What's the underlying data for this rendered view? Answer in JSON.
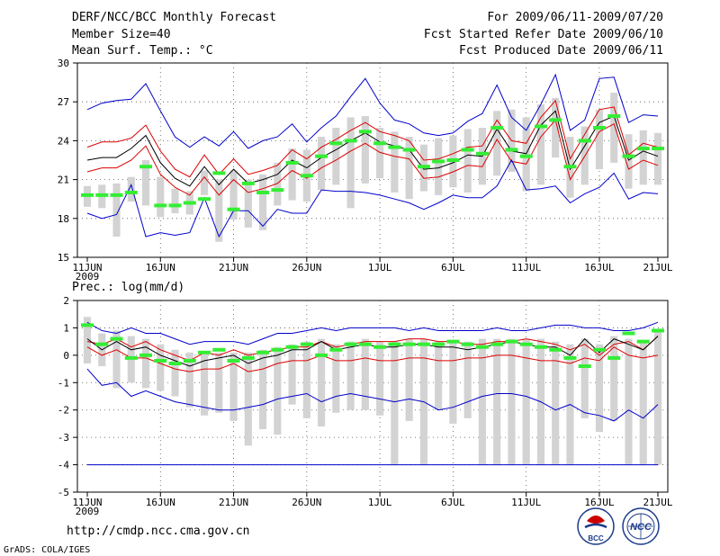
{
  "header": {
    "title": "DERF/NCC/BCC Monthly Forecast",
    "member_size": "Member Size=40",
    "variable": "Mean Surf. Temp.: °C",
    "period": "For 2009/06/11-2009/07/20",
    "started": "Fcst Started Refer Date 2009/06/10",
    "produced": "Fcst Produced Date 2009/06/11"
  },
  "footer": {
    "url": "http://cmdp.ncc.cma.gov.cn",
    "grads": "GrADS: COLA/IGES",
    "logo1_text": "BCC",
    "logo2_text": "NCC"
  },
  "colors": {
    "max": "#0000cc",
    "spread": "#dd0000",
    "mean": "#000000",
    "box": "#d3d3d3",
    "median": "#33ee33",
    "grid": "#555555"
  },
  "chart_data": [
    {
      "type": "line",
      "title": "Mean Surf. Temp.: °C",
      "x_tick_labels": [
        "11JUN",
        "16JUN",
        "21JUN",
        "26JUN",
        "1JUL",
        "6JUL",
        "11JUL",
        "16JUL",
        "21JUL"
      ],
      "x_year_label": "2009",
      "y_tick_labels": [
        "15",
        "18",
        "21",
        "24",
        "27",
        "30"
      ],
      "ylim": [
        15,
        30
      ],
      "days": 40,
      "series": [
        {
          "name": "max",
          "values": [
            26.4,
            26.9,
            27.1,
            27.2,
            28.4,
            26.3,
            24.3,
            23.5,
            24.3,
            23.6,
            24.7,
            23.4,
            24.0,
            24.3,
            25.3,
            23.9,
            25.0,
            25.9,
            27.4,
            28.8,
            26.9,
            25.6,
            25.3,
            24.6,
            24.4,
            24.6,
            25.5,
            26.1,
            28.3,
            25.8,
            24.8,
            26.8,
            29.1,
            24.8,
            25.6,
            28.8,
            28.9,
            25.4,
            26.0,
            25.9
          ]
        },
        {
          "name": "upper",
          "values": [
            23.5,
            23.9,
            23.9,
            24.2,
            25.2,
            23.2,
            21.8,
            21.2,
            22.9,
            21.4,
            22.6,
            21.4,
            21.7,
            22.1,
            23.3,
            22.6,
            23.5,
            24.1,
            24.8,
            25.4,
            24.7,
            24.4,
            24.0,
            22.5,
            22.6,
            23.0,
            23.5,
            23.6,
            25.6,
            24.0,
            23.8,
            25.8,
            27.1,
            22.6,
            24.5,
            26.4,
            26.6,
            22.9,
            23.8,
            23.5
          ]
        },
        {
          "name": "mean",
          "values": [
            22.5,
            22.7,
            22.7,
            23.4,
            24.4,
            22.3,
            21.1,
            20.5,
            22.0,
            20.6,
            21.8,
            20.7,
            21.0,
            21.4,
            22.5,
            21.9,
            22.7,
            23.3,
            24.0,
            24.6,
            23.9,
            23.6,
            23.3,
            21.8,
            21.9,
            22.3,
            22.9,
            22.8,
            24.9,
            23.2,
            23.0,
            25.2,
            26.3,
            21.8,
            23.6,
            25.4,
            25.9,
            22.5,
            23.2,
            22.8
          ]
        },
        {
          "name": "lower",
          "values": [
            21.6,
            21.9,
            21.9,
            22.5,
            23.6,
            21.4,
            20.4,
            19.8,
            21.2,
            19.8,
            21.0,
            20.0,
            20.3,
            20.7,
            21.7,
            21.1,
            21.9,
            22.5,
            23.2,
            23.8,
            23.1,
            22.8,
            22.6,
            21.1,
            21.2,
            21.6,
            22.1,
            22.0,
            24.1,
            22.4,
            22.2,
            24.3,
            25.6,
            21.0,
            22.8,
            24.7,
            25.3,
            21.8,
            22.5,
            22.1
          ]
        },
        {
          "name": "min",
          "values": [
            18.4,
            18.0,
            18.3,
            20.6,
            16.6,
            16.9,
            16.7,
            16.9,
            19.6,
            16.6,
            18.6,
            18.6,
            17.4,
            18.7,
            18.4,
            18.4,
            20.2,
            20.1,
            20.1,
            20.0,
            19.8,
            19.5,
            19.2,
            18.7,
            19.2,
            19.8,
            19.6,
            19.6,
            20.5,
            22.5,
            20.2,
            20.3,
            20.5,
            19.2,
            19.9,
            20.4,
            21.5,
            19.5,
            20.0,
            19.9
          ]
        }
      ],
      "box_tops": [
        20.5,
        20.6,
        20.7,
        21.2,
        22.5,
        21.2,
        20.3,
        20.1,
        21.7,
        21.0,
        21.7,
        21.0,
        21.4,
        22.3,
        23.4,
        23.3,
        24.3,
        25.0,
        25.8,
        25.9,
        25.0,
        24.7,
        24.3,
        23.7,
        24.2,
        24.4,
        24.9,
        25.0,
        26.3,
        26.4,
        25.8,
        26.8,
        27.3,
        24.3,
        25.1,
        26.4,
        27.7,
        24.5,
        24.8,
        24.6
      ],
      "box_bottoms": [
        18.9,
        18.8,
        16.6,
        19.3,
        19.0,
        18.1,
        18.4,
        18.3,
        19.8,
        16.2,
        17.9,
        17.3,
        17.1,
        19.0,
        19.4,
        19.3,
        20.2,
        20.6,
        18.8,
        20.7,
        21.1,
        20.0,
        19.5,
        20.1,
        19.8,
        20.4,
        20.0,
        20.6,
        21.3,
        21.6,
        20.1,
        20.6,
        22.7,
        19.6,
        20.6,
        21.8,
        22.3,
        20.3,
        20.6,
        20.6
      ],
      "medians": [
        19.8,
        19.8,
        19.8,
        20.0,
        22.0,
        19.0,
        19.0,
        19.2,
        19.5,
        21.5,
        18.7,
        20.7,
        20.0,
        20.2,
        22.3,
        21.3,
        22.8,
        23.8,
        24.0,
        24.7,
        23.8,
        23.5,
        23.3,
        22.0,
        22.4,
        22.5,
        23.3,
        23.0,
        25.0,
        23.3,
        22.8,
        25.1,
        25.6,
        22.0,
        24.0,
        25.0,
        25.9,
        22.8,
        23.4,
        23.4
      ]
    },
    {
      "type": "line",
      "title": "Prec.: log(mm/d)",
      "x_tick_labels": [
        "11JUN",
        "16JUN",
        "21JUN",
        "26JUN",
        "1JUL",
        "6JUL",
        "11JUL",
        "16JUL",
        "21JUL"
      ],
      "x_year_label": "2009",
      "y_tick_labels": [
        "-5",
        "-4",
        "-3",
        "-2",
        "-1",
        "0",
        "1",
        "2"
      ],
      "ylim": [
        -5,
        2
      ],
      "days": 40,
      "series": [
        {
          "name": "max",
          "values": [
            1.2,
            0.9,
            0.8,
            1.0,
            0.8,
            0.8,
            0.6,
            0.4,
            0.5,
            0.5,
            0.5,
            0.4,
            0.6,
            0.8,
            0.8,
            0.9,
            1.0,
            0.9,
            1.0,
            1.0,
            1.0,
            1.0,
            0.9,
            1.0,
            0.9,
            0.9,
            0.9,
            0.9,
            1.0,
            0.9,
            0.9,
            1.0,
            1.1,
            1.1,
            1.0,
            1.0,
            0.9,
            0.9,
            1.0,
            1.2
          ]
        },
        {
          "name": "upper",
          "values": [
            0.5,
            0.4,
            0.6,
            0.3,
            0.5,
            0.2,
            0.0,
            -0.2,
            0.1,
            0.0,
            0.2,
            0.0,
            0.1,
            0.2,
            0.3,
            0.3,
            0.5,
            0.3,
            0.4,
            0.5,
            0.5,
            0.5,
            0.6,
            0.6,
            0.5,
            0.5,
            0.4,
            0.4,
            0.5,
            0.5,
            0.6,
            0.5,
            0.4,
            0.2,
            0.4,
            0.0,
            0.4,
            0.5,
            0.2,
            0.7
          ]
        },
        {
          "name": "mean",
          "values": [
            0.6,
            0.2,
            0.5,
            0.2,
            0.3,
            0.0,
            -0.2,
            -0.4,
            -0.2,
            -0.1,
            0.0,
            -0.3,
            -0.1,
            0.0,
            0.2,
            0.2,
            0.5,
            0.2,
            0.3,
            0.4,
            0.3,
            0.3,
            0.4,
            0.4,
            0.3,
            0.3,
            0.2,
            0.3,
            0.4,
            0.5,
            0.4,
            0.3,
            0.3,
            0.0,
            0.6,
            0.1,
            0.6,
            0.4,
            0.2,
            0.7
          ]
        },
        {
          "name": "lower",
          "values": [
            0.3,
            0.0,
            0.2,
            -0.1,
            -0.1,
            -0.3,
            -0.5,
            -0.6,
            -0.5,
            -0.5,
            -0.3,
            -0.6,
            -0.5,
            -0.3,
            -0.2,
            -0.2,
            0.0,
            -0.2,
            -0.2,
            -0.1,
            -0.2,
            -0.2,
            -0.1,
            -0.1,
            -0.2,
            -0.2,
            -0.1,
            -0.1,
            0.0,
            0.0,
            -0.1,
            -0.2,
            -0.2,
            -0.3,
            -0.1,
            -0.2,
            0.3,
            0.0,
            -0.1,
            0.0
          ]
        },
        {
          "name": "min",
          "values": [
            -0.5,
            -1.1,
            -1.0,
            -1.5,
            -1.3,
            -1.5,
            -1.7,
            -1.8,
            -1.9,
            -2.0,
            -2.0,
            -1.9,
            -1.8,
            -1.6,
            -1.5,
            -1.4,
            -1.7,
            -1.5,
            -1.4,
            -1.5,
            -1.6,
            -1.7,
            -1.6,
            -1.7,
            -2.0,
            -1.9,
            -1.7,
            -1.5,
            -1.4,
            -1.4,
            -1.5,
            -1.7,
            -2.0,
            -1.8,
            -2.1,
            -2.2,
            -2.4,
            -2.0,
            -2.3,
            -1.8
          ]
        }
      ],
      "box_tops": [
        1.4,
        0.8,
        0.9,
        0.7,
        0.6,
        0.4,
        0.2,
        0.1,
        0.1,
        0.1,
        0.1,
        0.1,
        0.2,
        0.3,
        0.4,
        0.5,
        0.6,
        0.4,
        0.5,
        0.6,
        0.5,
        0.5,
        0.6,
        0.6,
        0.5,
        0.5,
        0.5,
        0.6,
        0.6,
        0.6,
        0.6,
        0.6,
        0.5,
        0.4,
        0.6,
        0.4,
        0.7,
        0.6,
        0.5,
        0.9
      ],
      "box_bottoms": [
        -0.3,
        -0.4,
        -1.2,
        -1.0,
        -1.2,
        -1.3,
        -1.5,
        -1.9,
        -2.2,
        -2.1,
        -2.4,
        -3.3,
        -2.7,
        -2.9,
        -1.8,
        -2.3,
        -2.6,
        -2.1,
        -2.0,
        -2.0,
        -2.2,
        -4.0,
        -2.4,
        -4.0,
        -2.0,
        -2.5,
        -2.3,
        -4.0,
        -4.0,
        -4.0,
        -4.0,
        -4.0,
        -4.0,
        -4.0,
        -2.3,
        -2.8,
        -2.4,
        -4.0,
        -4.0,
        -4.0
      ],
      "medians": [
        1.1,
        0.4,
        0.6,
        -0.1,
        0.0,
        -0.2,
        -0.3,
        -0.2,
        0.1,
        0.2,
        -0.2,
        -0.1,
        0.1,
        0.2,
        0.3,
        0.4,
        0.0,
        0.2,
        0.4,
        0.4,
        0.3,
        0.4,
        0.4,
        0.4,
        0.4,
        0.5,
        0.4,
        0.3,
        0.4,
        0.5,
        0.4,
        0.3,
        0.2,
        -0.1,
        -0.4,
        0.2,
        -0.1,
        0.8,
        0.5,
        0.9
      ],
      "floor_value": -4.0
    }
  ]
}
